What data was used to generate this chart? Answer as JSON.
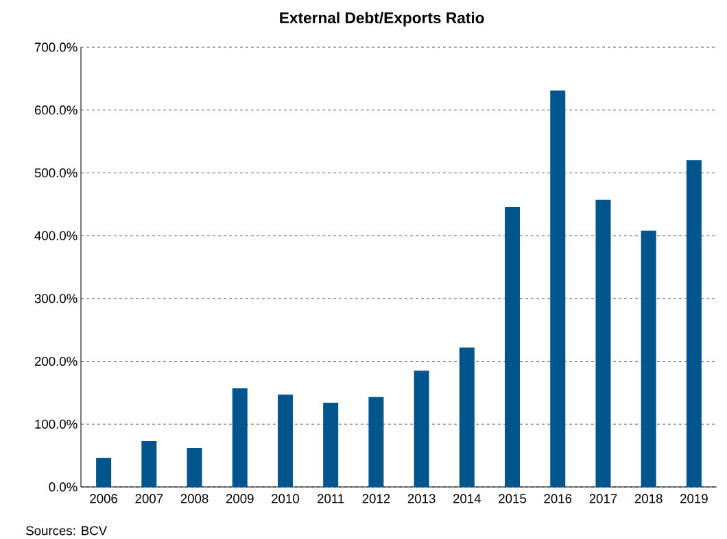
{
  "chart_data": {
    "type": "bar",
    "title": "External Debt/Exports Ratio",
    "categories": [
      "2006",
      "2007",
      "2008",
      "2009",
      "2010",
      "2011",
      "2012",
      "2013",
      "2014",
      "2015",
      "2016",
      "2017",
      "2018",
      "2019"
    ],
    "values": [
      46,
      73,
      62,
      157,
      147,
      134,
      143,
      185,
      222,
      446,
      631,
      457,
      408,
      520
    ],
    "color": "#00558c",
    "ylim": [
      0,
      700
    ],
    "yticks": [
      {
        "value": 0,
        "label": "0.0%"
      },
      {
        "value": 100,
        "label": "100.0%"
      },
      {
        "value": 200,
        "label": "200.0%"
      },
      {
        "value": 300,
        "label": "300.0%"
      },
      {
        "value": 400,
        "label": "400.0%"
      },
      {
        "value": 500,
        "label": "500.0%"
      },
      {
        "value": 600,
        "label": "600.0%"
      },
      {
        "value": 700,
        "label": "700.0%"
      }
    ],
    "grid": "y",
    "annotations": [
      "Sources: BCV"
    ]
  }
}
